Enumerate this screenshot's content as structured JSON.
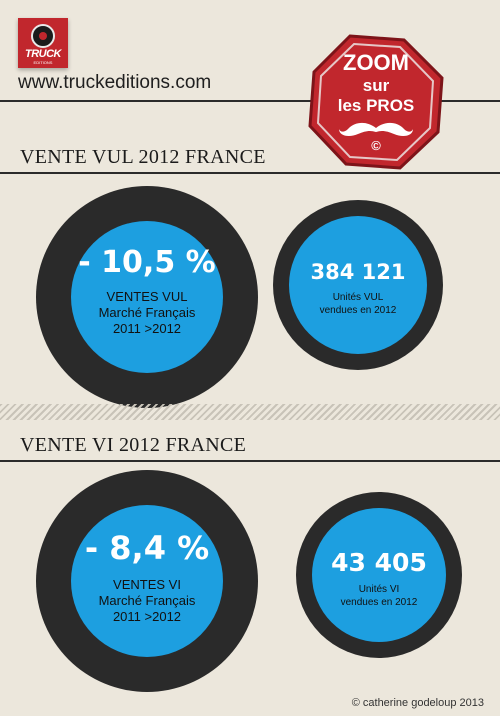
{
  "header": {
    "logo_text": "TRUCK",
    "logo_subtext": "EDITIONS",
    "website": "www.truckeditions.com"
  },
  "badge": {
    "line1": "ZOOM",
    "line2": "sur",
    "line3": "les PROS",
    "symbol": "©"
  },
  "section_vul": {
    "title": "VENTE VUL 2012 FRANCE",
    "left": {
      "value": "- 10,5 %",
      "line1": "VENTES VUL",
      "line2": "Marché Français",
      "line3": "2011 >2012"
    },
    "right": {
      "value": "384 121",
      "line1": "Unités VUL",
      "line2": "vendues en 2012"
    }
  },
  "section_vi": {
    "title": "VENTE VI 2012 FRANCE",
    "left": {
      "value": "- 8,4 %",
      "line1": "VENTES VI",
      "line2": "Marché Français",
      "line3": "2011 >2012"
    },
    "right": {
      "value": "43 405",
      "line1": "Unités VI",
      "line2": "vendues en 2012"
    }
  },
  "footer": {
    "copyright": "© catherine godeloup 2013"
  },
  "colors": {
    "background": "#ece7dc",
    "accent_blue": "#1d9fe0",
    "ring_dark": "#2a2a2a",
    "brand_red": "#c1272d"
  }
}
